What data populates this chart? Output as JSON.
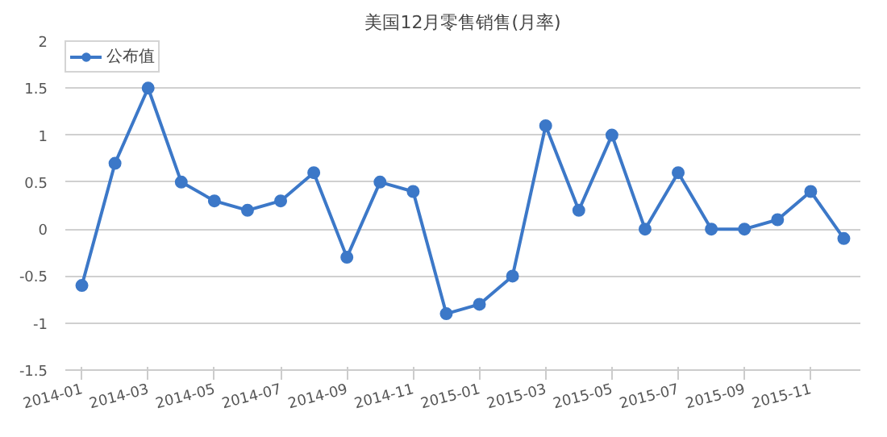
{
  "chart_data": {
    "type": "line",
    "title": "美国12月零售销售(月率)",
    "categories": [
      "2014-01",
      null,
      "2014-03",
      null,
      "2014-05",
      null,
      "2014-07",
      null,
      "2014-09",
      null,
      "2014-11",
      null,
      "2015-01",
      null,
      "2015-03",
      null,
      "2015-05",
      null,
      "2015-07",
      null,
      "2015-09",
      null,
      "2015-11",
      null
    ],
    "series": [
      {
        "name": "公布值",
        "color": "#3c78c8",
        "values": [
          -0.6,
          0.7,
          1.5,
          0.5,
          0.3,
          0.2,
          0.3,
          0.6,
          -0.3,
          0.5,
          0.4,
          -0.9,
          -0.8,
          -0.5,
          1.1,
          0.2,
          1.0,
          0.0,
          0.6,
          0.0,
          0.0,
          0.1,
          0.4,
          -0.1
        ]
      }
    ],
    "ylim": [
      -1.5,
      2
    ],
    "yticks": [
      -1.5,
      -0.5,
      0,
      0.5,
      1,
      1.5,
      2,
      {
        "value": -1,
        "label": "-1"
      }
    ],
    "grid": "y",
    "legend": "top left",
    "marker": "circle",
    "line_style": "solid"
  }
}
